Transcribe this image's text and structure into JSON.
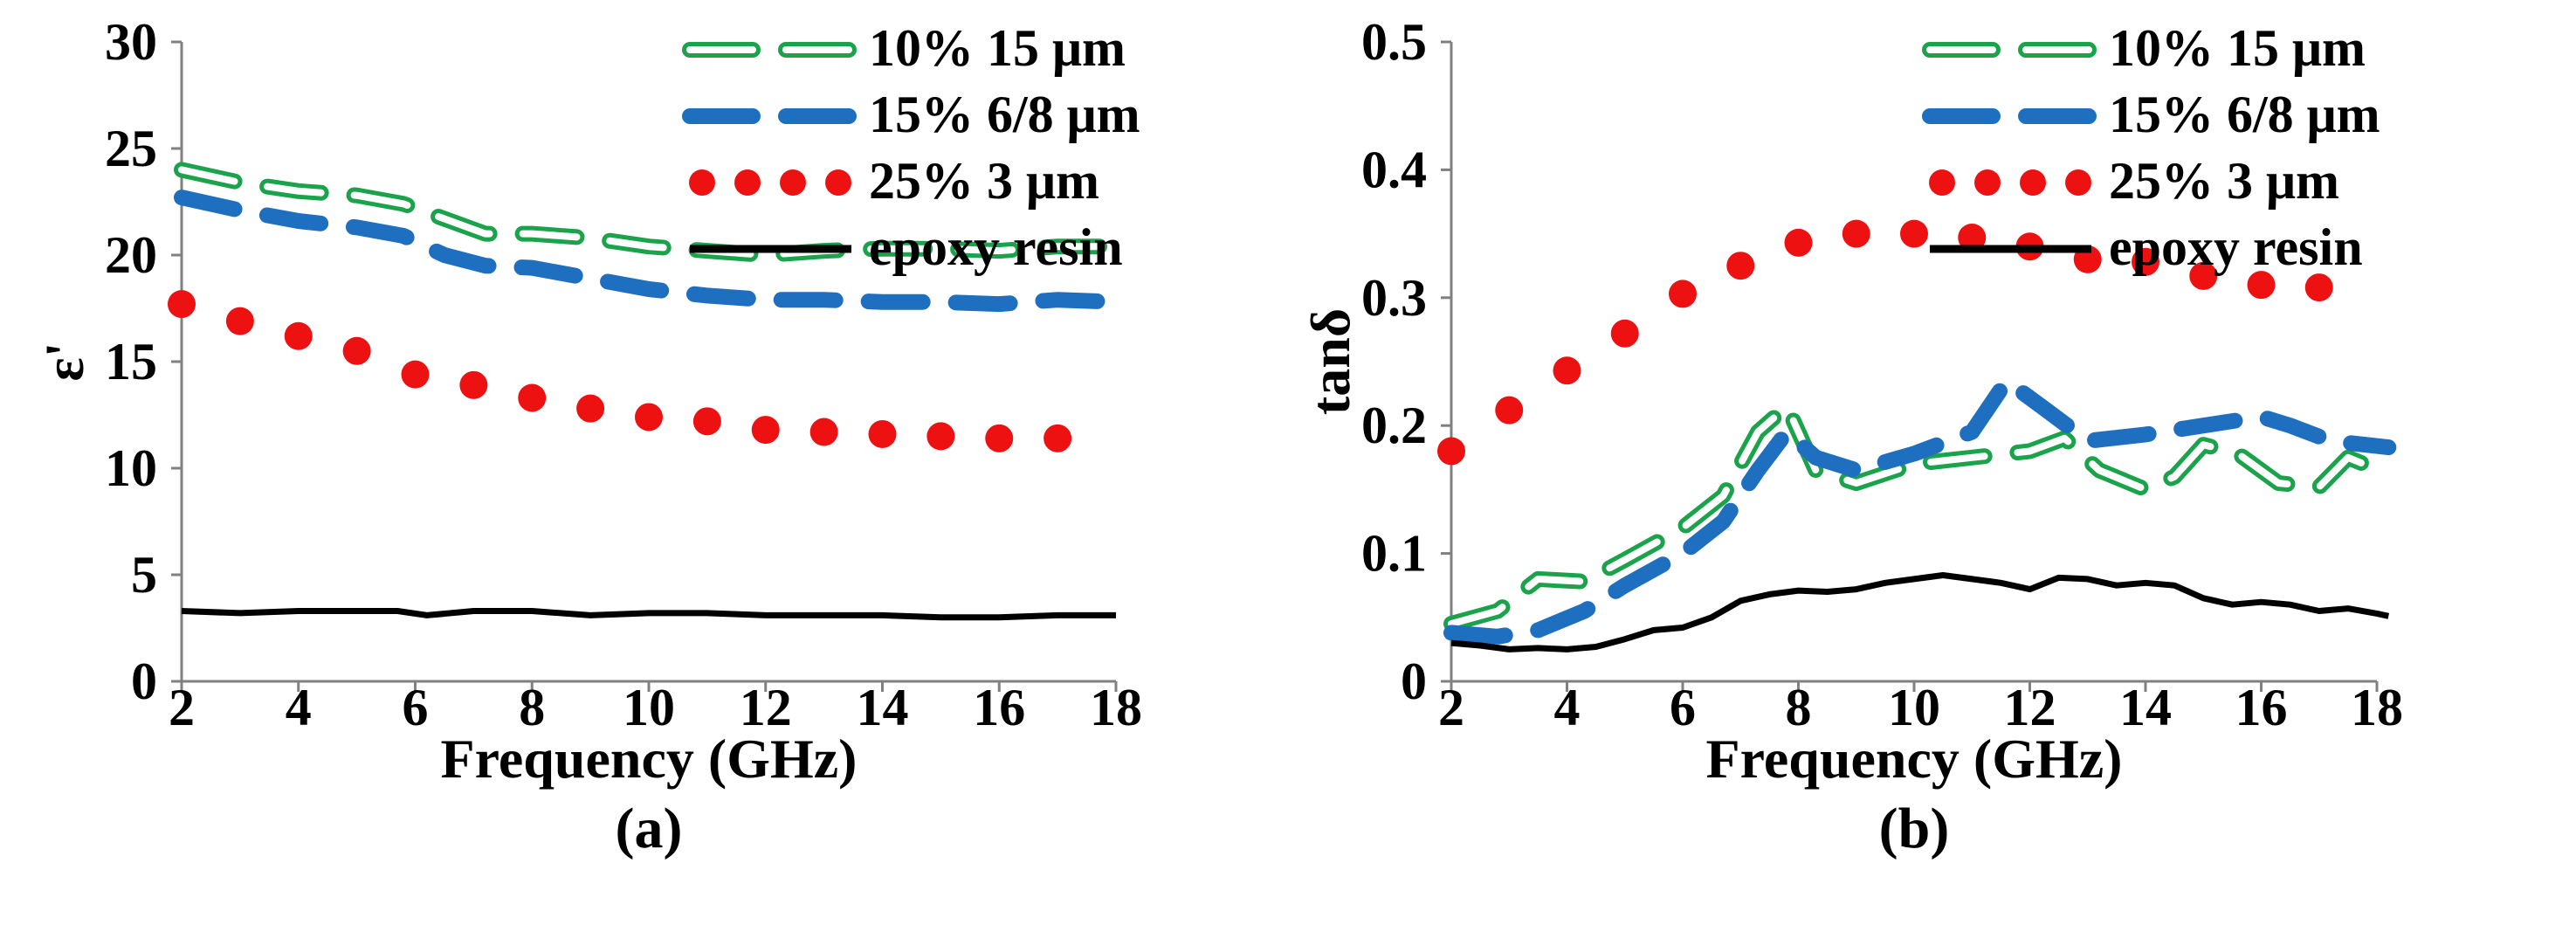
{
  "chart_data": [
    {
      "type": "line",
      "panel_label": "(a)",
      "title": "",
      "xlabel": "Frequency (GHz)",
      "ylabel": "ε'",
      "xlim": [
        2,
        18
      ],
      "ylim": [
        0,
        30
      ],
      "xticks": [
        "2",
        "4",
        "6",
        "8",
        "10",
        "12",
        "14",
        "16",
        "18"
      ],
      "yticks": [
        "0",
        "5",
        "10",
        "15",
        "20",
        "25",
        "30"
      ],
      "legend_position": "top-right",
      "series": [
        {
          "name": "10% 15 μm",
          "style": "dashed-hollow",
          "color": "#1aa34a",
          "x": [
            2,
            3,
            4,
            5,
            5.8,
            6.5,
            7.2,
            8,
            9,
            10,
            11,
            12,
            13,
            14,
            15,
            16,
            17,
            18
          ],
          "values": [
            24.0,
            23.4,
            23.0,
            22.8,
            22.4,
            21.7,
            21.0,
            21.0,
            20.8,
            20.4,
            20.2,
            20.0,
            20.2,
            20.3,
            20.3,
            20.2,
            20.4,
            20.4
          ]
        },
        {
          "name": "15% 6/8 μm",
          "style": "dashed",
          "color": "#1f6fc1",
          "x": [
            2,
            3,
            4,
            5,
            5.8,
            6.5,
            7.2,
            8,
            9,
            10,
            11,
            12,
            13,
            14,
            15,
            16,
            17,
            18
          ],
          "values": [
            22.7,
            22.1,
            21.6,
            21.3,
            20.9,
            20.0,
            19.5,
            19.4,
            18.9,
            18.4,
            18.1,
            17.9,
            17.9,
            17.8,
            17.8,
            17.7,
            17.9,
            17.8
          ]
        },
        {
          "name": "25% 3 μm",
          "style": "dotted",
          "color": "#ee1111",
          "x": [
            2,
            3,
            4,
            5,
            6,
            7,
            8,
            9,
            10,
            11,
            12,
            13,
            14,
            15,
            16,
            17
          ],
          "values": [
            17.7,
            16.9,
            16.2,
            15.5,
            14.4,
            13.9,
            13.3,
            12.8,
            12.4,
            12.2,
            11.8,
            11.7,
            11.6,
            11.5,
            11.4,
            11.4
          ]
        },
        {
          "name": "epoxy resin",
          "style": "solid",
          "color": "#000000",
          "x": [
            2,
            3,
            4,
            5,
            5.7,
            6.2,
            7,
            8,
            9,
            10,
            11,
            12,
            13,
            14,
            15,
            16,
            17,
            18
          ],
          "values": [
            3.3,
            3.2,
            3.3,
            3.3,
            3.3,
            3.1,
            3.3,
            3.3,
            3.1,
            3.2,
            3.2,
            3.1,
            3.1,
            3.1,
            3.0,
            3.0,
            3.1,
            3.1
          ]
        }
      ]
    },
    {
      "type": "line",
      "panel_label": "(b)",
      "title": "",
      "xlabel": "Frequency (GHz)",
      "ylabel": "tanδ",
      "xlim": [
        2,
        18
      ],
      "ylim": [
        0,
        0.5
      ],
      "xticks": [
        "2",
        "4",
        "6",
        "8",
        "10",
        "12",
        "14",
        "16",
        "18"
      ],
      "yticks": [
        "0",
        "0.1",
        "0.2",
        "0.3",
        "0.4",
        "0.5"
      ],
      "legend_position": "top-right",
      "series": [
        {
          "name": "10% 15 μm",
          "style": "dashed-hollow",
          "color": "#1aa34a",
          "x": [
            2,
            2.8,
            3.5,
            4.3,
            5,
            6,
            6.7,
            7.3,
            7.8,
            8.3,
            9,
            10,
            11,
            12,
            12.6,
            13.2,
            14,
            14.5,
            15,
            15.6,
            16.3,
            17,
            17.5,
            18.2
          ],
          "values": [
            0.045,
            0.055,
            0.08,
            0.078,
            0.095,
            0.12,
            0.145,
            0.195,
            0.215,
            0.165,
            0.155,
            0.17,
            0.175,
            0.18,
            0.19,
            0.165,
            0.15,
            0.16,
            0.185,
            0.178,
            0.155,
            0.152,
            0.175,
            0.162
          ]
        },
        {
          "name": "15% 6/8 μm",
          "style": "dashed",
          "color": "#1f6fc1",
          "x": [
            2,
            2.8,
            3.5,
            4.3,
            5,
            6,
            6.7,
            7.3,
            7.8,
            8.3,
            9,
            10,
            11,
            11.6,
            12.2,
            13,
            14,
            15,
            16,
            16.5,
            17.2,
            18.2
          ],
          "values": [
            0.038,
            0.035,
            0.04,
            0.055,
            0.075,
            0.1,
            0.125,
            0.165,
            0.195,
            0.175,
            0.165,
            0.178,
            0.195,
            0.235,
            0.215,
            0.188,
            0.193,
            0.2,
            0.207,
            0.2,
            0.188,
            0.183
          ]
        },
        {
          "name": "25% 3 μm",
          "style": "dotted",
          "color": "#ee1111",
          "x": [
            2,
            3,
            4,
            5,
            6,
            7,
            8,
            9,
            10,
            11,
            12,
            13,
            14,
            15,
            16,
            17
          ],
          "values": [
            0.18,
            0.212,
            0.243,
            0.272,
            0.303,
            0.325,
            0.343,
            0.35,
            0.35,
            0.347,
            0.34,
            0.33,
            0.328,
            0.317,
            0.31,
            0.308
          ]
        },
        {
          "name": "epoxy resin",
          "style": "solid",
          "color": "#000000",
          "x": [
            2,
            2.5,
            3,
            3.5,
            4,
            4.5,
            5,
            5.5,
            6,
            6.5,
            7,
            7.5,
            8,
            8.5,
            9,
            9.5,
            10,
            10.5,
            11,
            11.5,
            12,
            12.5,
            13,
            13.5,
            14,
            14.5,
            15,
            15.5,
            16,
            16.5,
            17,
            17.5,
            18,
            18.2
          ],
          "values": [
            0.03,
            0.028,
            0.025,
            0.026,
            0.025,
            0.027,
            0.033,
            0.04,
            0.042,
            0.05,
            0.063,
            0.068,
            0.071,
            0.07,
            0.072,
            0.077,
            0.08,
            0.083,
            0.08,
            0.077,
            0.072,
            0.081,
            0.08,
            0.075,
            0.077,
            0.075,
            0.065,
            0.06,
            0.062,
            0.06,
            0.055,
            0.057,
            0.053,
            0.051
          ]
        }
      ]
    }
  ]
}
